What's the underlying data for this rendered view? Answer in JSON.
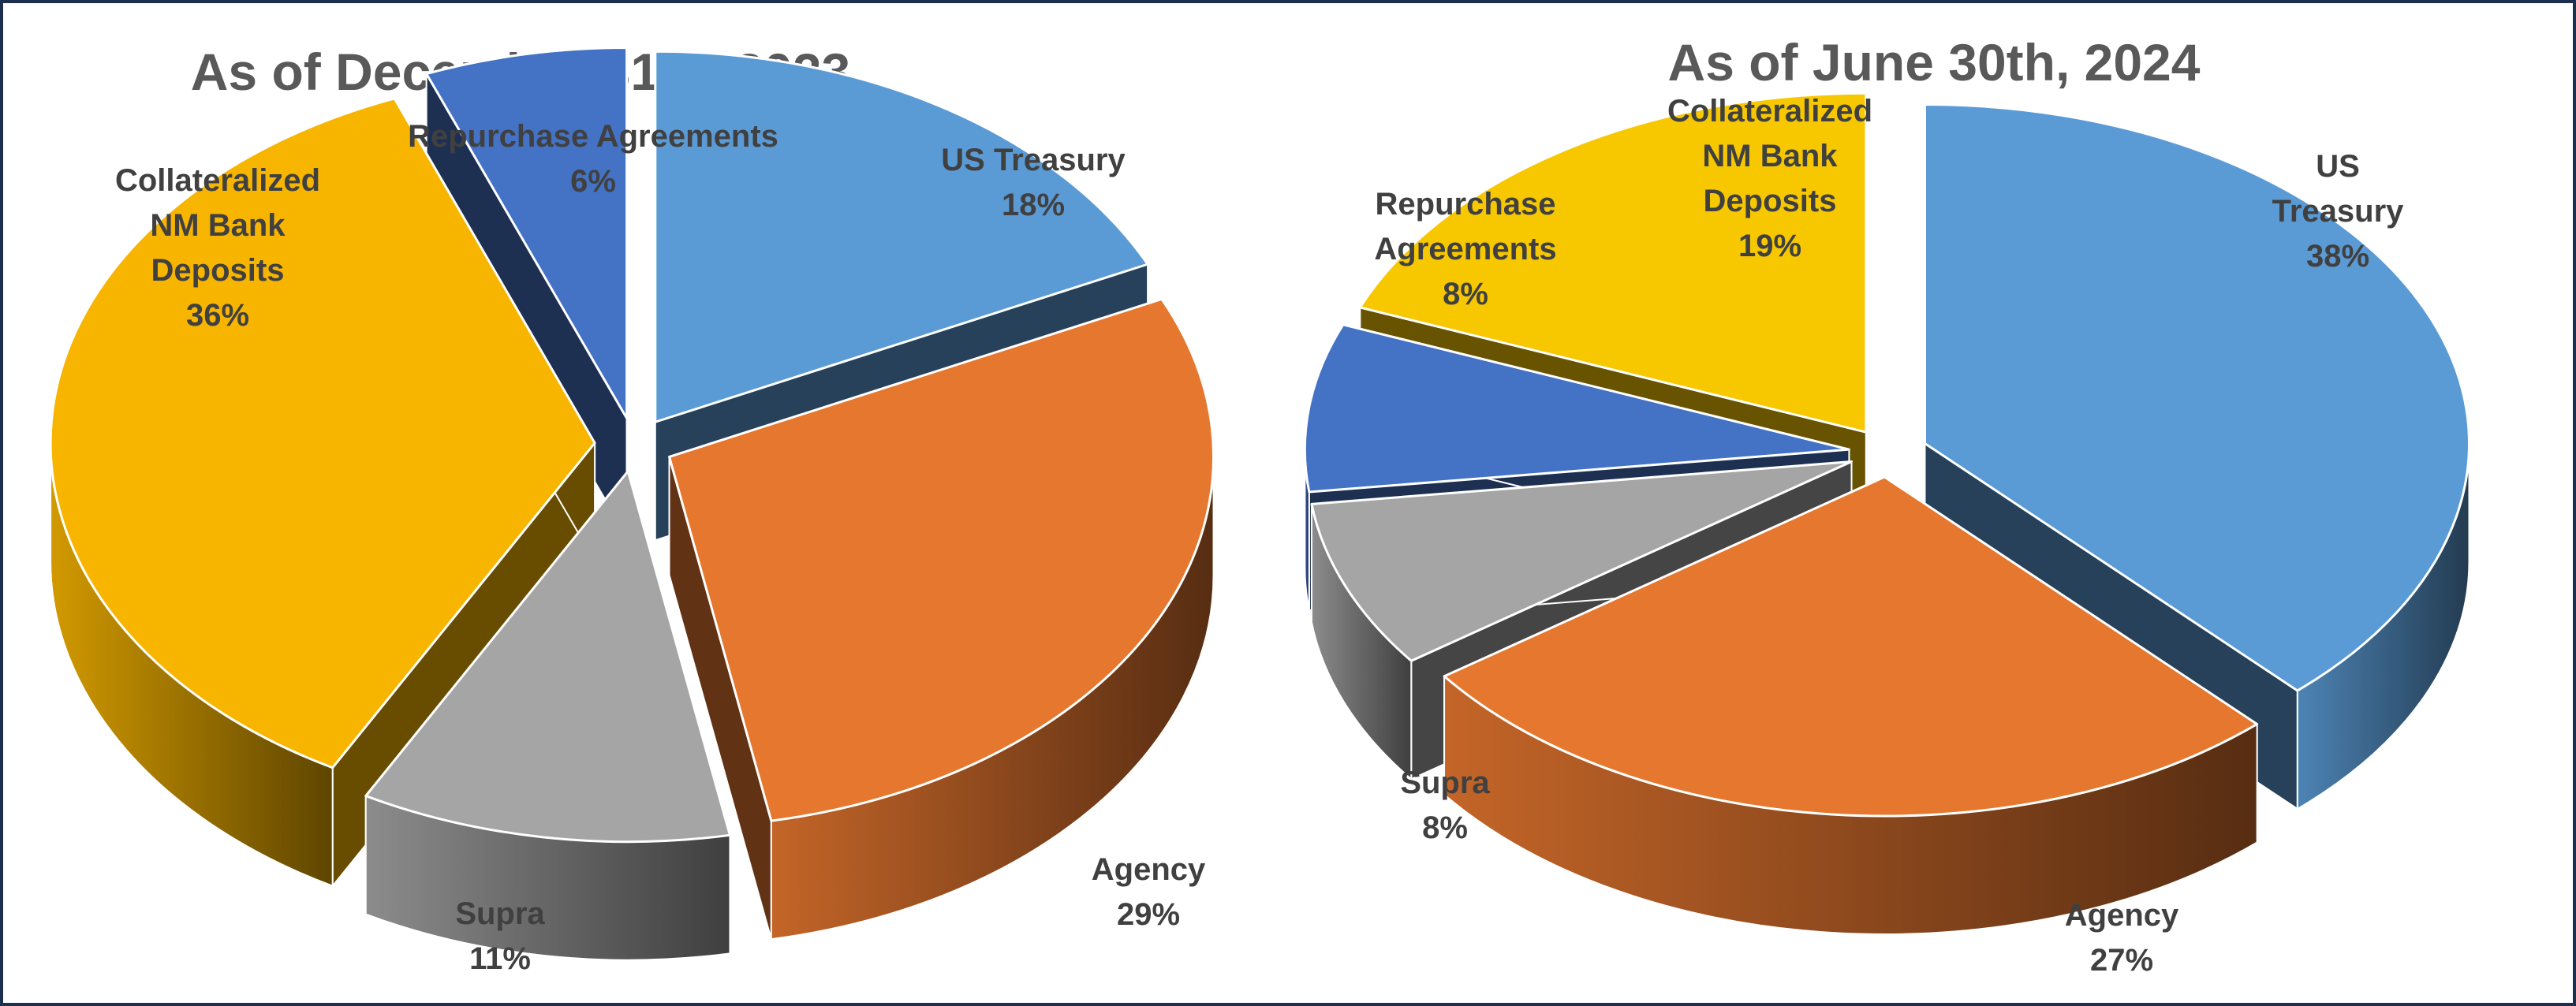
{
  "chart_data": [
    {
      "type": "pie",
      "title": "As of December 31st, 2023",
      "slices": [
        {
          "label": "US Treasury",
          "value": 18,
          "percent_label": "18%",
          "color": "#5b9bd5"
        },
        {
          "label": "Agency",
          "value": 29,
          "percent_label": "29%",
          "color": "#e6772f"
        },
        {
          "label": "Supra",
          "value": 11,
          "percent_label": "11%",
          "color": "#a5a5a5"
        },
        {
          "label": "Collateralized NM Bank Deposits",
          "value": 36,
          "percent_label": "36%",
          "color": "#f7b500"
        },
        {
          "label": "Repurchase Agreements",
          "value": 6,
          "percent_label": "6%",
          "color": "#4472c4"
        }
      ]
    },
    {
      "type": "pie",
      "title": "As of June 30th, 2024",
      "slices": [
        {
          "label": "US Treasury",
          "value": 38,
          "percent_label": "38%",
          "color": "#5b9bd5"
        },
        {
          "label": "Agency",
          "value": 27,
          "percent_label": "27%",
          "color": "#e6772f"
        },
        {
          "label": "Supra",
          "value": 8,
          "percent_label": "8%",
          "color": "#a5a5a5"
        },
        {
          "label": "Repurchase Agreements",
          "value": 8,
          "percent_label": "8%",
          "color": "#4472c4"
        },
        {
          "label": "Collateralized NM Bank Deposits",
          "value": 19,
          "percent_label": "19%",
          "color": "#f7c800"
        }
      ]
    }
  ]
}
